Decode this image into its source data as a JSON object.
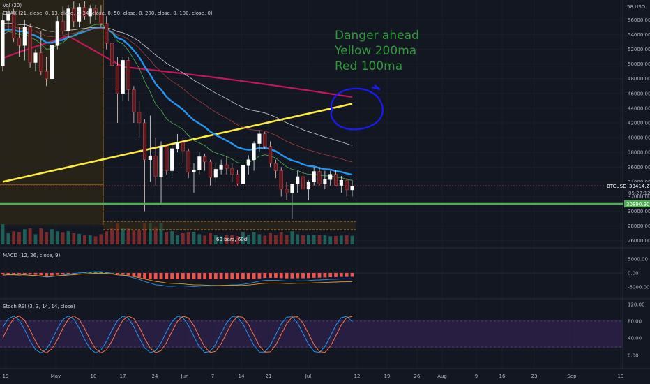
{
  "chart_data": {
    "type": "candlestick",
    "symbol": "BTCUSD",
    "price_axis": {
      "unit_label": "USD",
      "top_label": "58 USD",
      "ticks": [
        "56000.00",
        "54000.00",
        "52000.00",
        "50000.00",
        "48000.00",
        "46000.00",
        "44000.00",
        "42000.00",
        "40000.00",
        "38000.00",
        "36000.00",
        "34000.00",
        "32000.00",
        "30000.00",
        "28000.00",
        "26000.00"
      ],
      "ylim": [
        25500,
        58500
      ]
    },
    "time_axis": {
      "labels": [
        "19",
        "May",
        "10",
        "17",
        "24",
        "Jun",
        "7",
        "14",
        "21",
        "Jul",
        "12",
        "19",
        "26",
        "Aug",
        "9",
        "16",
        "23",
        "Sep",
        "13"
      ]
    },
    "indicators": {
      "volume": "Vol (20)",
      "emax": "EMAX (21, close, 0, 13, close, 0, 34, close, 0, 50, close, 0, 200, close, 0, 100, close, 0)",
      "macd": "MACD (12, 26, close, 9)",
      "stoch": "Stoch RSI (3, 3, 14, 14, close)"
    },
    "last_price": {
      "label": "BTCUSD",
      "value": "33414.27",
      "countdown": "05:27:12"
    },
    "support_level": {
      "value": "30890.90",
      "color": "#4caf50"
    },
    "range_label": "60 bars, 60d",
    "macd_ticks": [
      "5000.00",
      "0.00",
      "-5000.00"
    ],
    "stoch_ticks": [
      "120.00",
      "80.00",
      "40.00",
      "0.00"
    ],
    "candles": [
      {
        "o": 49800,
        "h": 57000,
        "l": 49000,
        "c": 55900
      },
      {
        "o": 55900,
        "h": 58000,
        "l": 54500,
        "c": 56800
      },
      {
        "o": 56800,
        "h": 57500,
        "l": 53000,
        "c": 53500
      },
      {
        "o": 53500,
        "h": 55000,
        "l": 51000,
        "c": 52500
      },
      {
        "o": 52500,
        "h": 56000,
        "l": 50500,
        "c": 55000
      },
      {
        "o": 55000,
        "h": 55500,
        "l": 49500,
        "c": 50200
      },
      {
        "o": 50200,
        "h": 52000,
        "l": 49000,
        "c": 51500
      },
      {
        "o": 51500,
        "h": 54500,
        "l": 48500,
        "c": 49000
      },
      {
        "o": 49000,
        "h": 51000,
        "l": 47000,
        "c": 48000
      },
      {
        "o": 48000,
        "h": 53000,
        "l": 47500,
        "c": 52500
      },
      {
        "o": 52500,
        "h": 56500,
        "l": 52000,
        "c": 55800
      },
      {
        "o": 55800,
        "h": 57800,
        "l": 54000,
        "c": 54500
      },
      {
        "o": 54500,
        "h": 58000,
        "l": 53500,
        "c": 57500
      },
      {
        "o": 57500,
        "h": 58500,
        "l": 55000,
        "c": 55800
      },
      {
        "o": 55800,
        "h": 58200,
        "l": 55000,
        "c": 57700
      },
      {
        "o": 57700,
        "h": 58500,
        "l": 56000,
        "c": 56500
      },
      {
        "o": 56500,
        "h": 58000,
        "l": 55500,
        "c": 57500
      },
      {
        "o": 57500,
        "h": 58000,
        "l": 56000,
        "c": 56900
      },
      {
        "o": 56900,
        "h": 58000,
        "l": 55000,
        "c": 55500
      },
      {
        "o": 55500,
        "h": 56500,
        "l": 52000,
        "c": 52800
      },
      {
        "o": 52800,
        "h": 53000,
        "l": 47000,
        "c": 49800
      },
      {
        "o": 49800,
        "h": 51000,
        "l": 42000,
        "c": 46000
      },
      {
        "o": 46000,
        "h": 51000,
        "l": 45000,
        "c": 50500
      },
      {
        "o": 50500,
        "h": 51000,
        "l": 45000,
        "c": 46500
      },
      {
        "o": 46500,
        "h": 47000,
        "l": 42000,
        "c": 43500
      },
      {
        "o": 43500,
        "h": 45000,
        "l": 40000,
        "c": 42000
      },
      {
        "o": 42000,
        "h": 42500,
        "l": 30000,
        "c": 37000
      },
      {
        "o": 37000,
        "h": 43000,
        "l": 34000,
        "c": 37500
      },
      {
        "o": 37500,
        "h": 40000,
        "l": 33500,
        "c": 34700
      },
      {
        "o": 34700,
        "h": 39500,
        "l": 31000,
        "c": 38800
      },
      {
        "o": 38800,
        "h": 39000,
        "l": 35000,
        "c": 35500
      },
      {
        "o": 35500,
        "h": 39000,
        "l": 34500,
        "c": 38500
      },
      {
        "o": 38500,
        "h": 40500,
        "l": 38000,
        "c": 39300
      },
      {
        "o": 39300,
        "h": 40000,
        "l": 36500,
        "c": 38200
      },
      {
        "o": 38200,
        "h": 38500,
        "l": 34500,
        "c": 35300
      },
      {
        "o": 35300,
        "h": 36500,
        "l": 32500,
        "c": 35600
      },
      {
        "o": 35600,
        "h": 38000,
        "l": 35000,
        "c": 37400
      },
      {
        "o": 37400,
        "h": 37800,
        "l": 35500,
        "c": 36700
      },
      {
        "o": 36700,
        "h": 37000,
        "l": 33500,
        "c": 34600
      },
      {
        "o": 34600,
        "h": 36500,
        "l": 34000,
        "c": 35700
      },
      {
        "o": 35700,
        "h": 37000,
        "l": 35000,
        "c": 36300
      },
      {
        "o": 36300,
        "h": 37500,
        "l": 35000,
        "c": 35800
      },
      {
        "o": 35800,
        "h": 36500,
        "l": 34000,
        "c": 35000
      },
      {
        "o": 35000,
        "h": 35600,
        "l": 33500,
        "c": 33700
      },
      {
        "o": 33700,
        "h": 37000,
        "l": 33000,
        "c": 36200
      },
      {
        "o": 36200,
        "h": 37600,
        "l": 35000,
        "c": 37000
      },
      {
        "o": 37000,
        "h": 39500,
        "l": 35500,
        "c": 39200
      },
      {
        "o": 39200,
        "h": 41000,
        "l": 38000,
        "c": 40500
      },
      {
        "o": 40500,
        "h": 40800,
        "l": 38500,
        "c": 38800
      },
      {
        "o": 38800,
        "h": 39500,
        "l": 36000,
        "c": 36500
      },
      {
        "o": 36500,
        "h": 37000,
        "l": 34500,
        "c": 35500
      },
      {
        "o": 35500,
        "h": 36000,
        "l": 32000,
        "c": 33000
      },
      {
        "o": 33000,
        "h": 34000,
        "l": 31500,
        "c": 32500
      },
      {
        "o": 32500,
        "h": 33500,
        "l": 29000,
        "c": 33700
      },
      {
        "o": 33700,
        "h": 35500,
        "l": 32500,
        "c": 34700
      },
      {
        "o": 34700,
        "h": 35500,
        "l": 33000,
        "c": 33000
      },
      {
        "o": 33000,
        "h": 34200,
        "l": 31500,
        "c": 34000
      },
      {
        "o": 34000,
        "h": 36000,
        "l": 33500,
        "c": 35400
      },
      {
        "o": 35400,
        "h": 36000,
        "l": 33500,
        "c": 33700
      },
      {
        "o": 33700,
        "h": 35500,
        "l": 33000,
        "c": 34300
      },
      {
        "o": 34300,
        "h": 35500,
        "l": 33500,
        "c": 35000
      },
      {
        "o": 35000,
        "h": 35600,
        "l": 33500,
        "c": 33500
      },
      {
        "o": 33500,
        "h": 34800,
        "l": 32500,
        "c": 34200
      },
      {
        "o": 34200,
        "h": 34500,
        "l": 32000,
        "c": 32900
      },
      {
        "o": 32900,
        "h": 34200,
        "l": 32000,
        "c": 33400
      }
    ],
    "ma200": [
      34000,
      44600
    ],
    "ma100_start": 50800
  },
  "annotation": {
    "line1": "Danger ahead",
    "line2": "Yellow 200ma",
    "line3": "Red 100ma"
  },
  "colors": {
    "up": "#26a69a",
    "down": "#ef5350",
    "ma200": "#ffeb3b",
    "ma100": "#c2185b",
    "ema21": "#2196f3",
    "circle": "#1a1aff",
    "annotation": "#2e9b3a"
  }
}
